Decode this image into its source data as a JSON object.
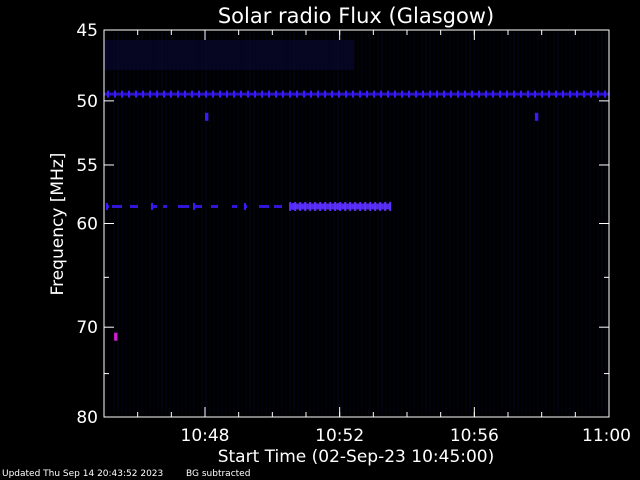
{
  "chart_data": {
    "type": "heatmap",
    "title": "Solar radio Flux (Glasgow)",
    "xlabel": "Start Time (02-Sep-23 10:45:00)",
    "ylabel": "Frequency [MHz]",
    "x_range_minutes_after_10_45": [
      0,
      15
    ],
    "x_ticks": [
      {
        "label": "10:48",
        "minutes": 3
      },
      {
        "label": "10:52",
        "minutes": 7
      },
      {
        "label": "10:56",
        "minutes": 11
      },
      {
        "label": "11:00",
        "minutes": 15
      }
    ],
    "y_scale": "log",
    "ylim": [
      45,
      80
    ],
    "y_reversed": true,
    "y_tick_labels": [
      45,
      50,
      55,
      60,
      70,
      80
    ],
    "y_minor_ticks": [
      65,
      75
    ],
    "features": [
      {
        "kind": "continuous RFI line",
        "freq_mhz": 49.5,
        "t_start": 0,
        "t_end": 15
      },
      {
        "kind": "intermittent emission",
        "freq_mhz": 58.5,
        "t_start": 0,
        "t_end": 8.5
      },
      {
        "kind": "strong emission segment",
        "freq_mhz": 58.5,
        "t_start": 5.5,
        "t_end": 8.5
      },
      {
        "kind": "spot",
        "freq_mhz": 71.0,
        "t_start": 0.3,
        "t_end": 0.4
      },
      {
        "kind": "spot",
        "freq_mhz": 51.2,
        "t_start": 3.0,
        "t_end": 3.1
      },
      {
        "kind": "spot",
        "freq_mhz": 51.2,
        "t_start": 12.8,
        "t_end": 12.9
      }
    ],
    "colors": {
      "background": "#000000",
      "emission": "#3a1aff",
      "strong": "#5b30ff",
      "spot": "#cc22cc",
      "axes": "#ffffff"
    }
  },
  "footer": {
    "updated": "Updated Thu Sep 14 20:43:52 2023",
    "note": "BG subtracted"
  }
}
